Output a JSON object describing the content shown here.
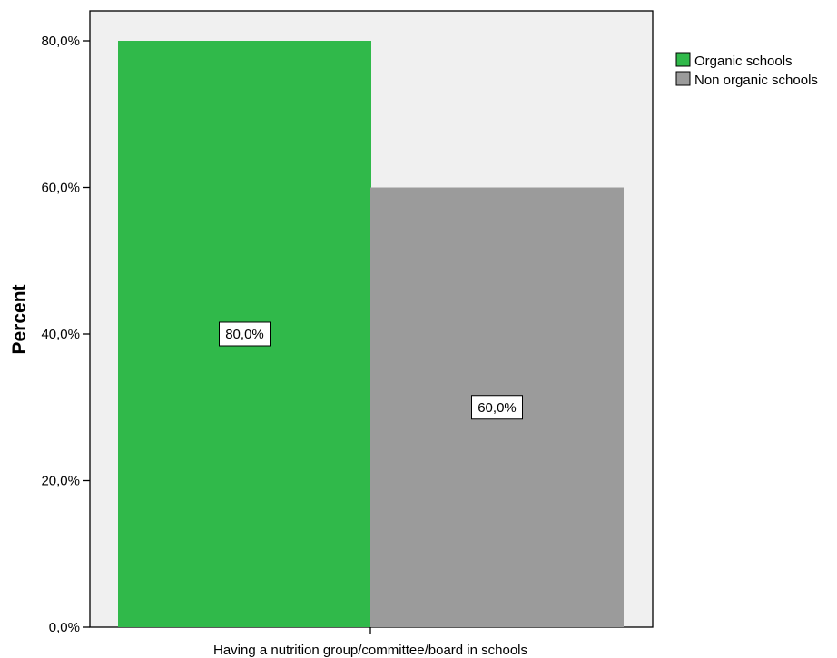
{
  "chart_data": {
    "type": "bar",
    "categories": [
      "Having a nutrition group/committee/board in schools"
    ],
    "series": [
      {
        "name": "Organic schools",
        "values": [
          80.0
        ],
        "color": "#30b94a",
        "label": "80,0%"
      },
      {
        "name": "Non organic schools",
        "values": [
          60.0
        ],
        "color": "#9b9b9b",
        "label": "60,0%"
      }
    ],
    "ylabel": "Percent",
    "xlabel": "Having a nutrition group/committee/board in schools",
    "ylim": [
      0,
      80
    ],
    "yticks": [
      0,
      20,
      40,
      60,
      80
    ],
    "ytick_labels": [
      "0,0%",
      "20,0%",
      "40,0%",
      "60,0%",
      "80,0%"
    ],
    "legend_position": "top-right",
    "plot_background": "#f0f0f0",
    "grid": false
  }
}
